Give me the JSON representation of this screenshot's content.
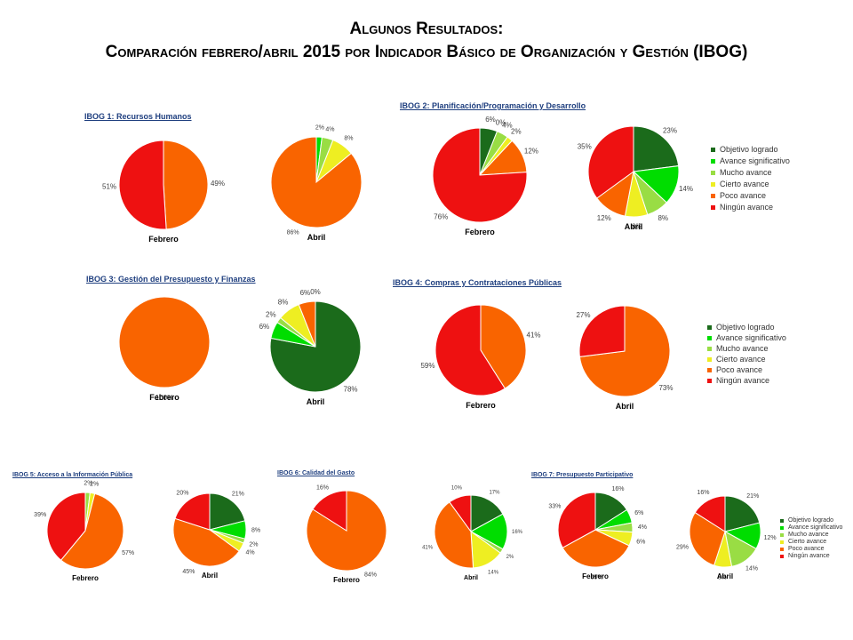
{
  "title_line1": "Algunos Resultados:",
  "title_line2": "Comparación febrero/abril 2015 por Indicador Básico de Organización y Gestión (IBOG)",
  "colors": {
    "Objetivo logrado": "#1B6B1B",
    "Avance significativo": "#00DD00",
    "Mucho avance": "#99DD44",
    "Cierto avance": "#EEEE22",
    "Poco avance": "#F96400",
    "Ningún avance": "#EE1111"
  },
  "legend": [
    "Objetivo logrado",
    "Avance significativo",
    "Mucho avance",
    "Cierto avance",
    "Poco avance",
    "Ningún avance"
  ],
  "chart_data": [
    {
      "type": "pie",
      "title": "IBOG 1: Recursos Humanos",
      "category": "Febrero",
      "slices": [
        {
          "label": "Poco avance",
          "value": 49
        },
        {
          "label": "Ningún avance",
          "value": 51
        }
      ]
    },
    {
      "type": "pie",
      "title": "IBOG 1: Recursos Humanos",
      "category": "Abril",
      "slices": [
        {
          "label": "Avance significativo",
          "value": 2
        },
        {
          "label": "Mucho avance",
          "value": 4
        },
        {
          "label": "Cierto avance",
          "value": 8
        },
        {
          "label": "Poco avance",
          "value": 86
        }
      ]
    },
    {
      "type": "pie",
      "title": "IBOG 2: Planificación/Programación y Desarrollo",
      "category": "Febrero",
      "slices": [
        {
          "label": "Objetivo logrado",
          "value": 6
        },
        {
          "label": "Avance significativo",
          "value": 0
        },
        {
          "label": "Mucho avance",
          "value": 4
        },
        {
          "label": "Cierto avance",
          "value": 2
        },
        {
          "label": "Poco avance",
          "value": 12
        },
        {
          "label": "Ningún avance",
          "value": 76
        }
      ]
    },
    {
      "type": "pie",
      "title": "IBOG 2: Planificación/Programación y Desarrollo",
      "category": "Abril",
      "slices": [
        {
          "label": "Objetivo logrado",
          "value": 23
        },
        {
          "label": "Avance significativo",
          "value": 14
        },
        {
          "label": "Mucho avance",
          "value": 8
        },
        {
          "label": "Cierto avance",
          "value": 8
        },
        {
          "label": "Poco avance",
          "value": 12
        },
        {
          "label": "Ningún avance",
          "value": 35
        }
      ]
    },
    {
      "type": "pie",
      "title": "IBOG 3: Gestión del Presupuesto y Finanzas",
      "category": "Febrero",
      "slices": [
        {
          "label": "Poco avance",
          "value": 100
        }
      ]
    },
    {
      "type": "pie",
      "title": "IBOG 3: Gestión del Presupuesto y Finanzas",
      "category": "Abril",
      "slices": [
        {
          "label": "Objetivo logrado",
          "value": 78
        },
        {
          "label": "Avance significativo",
          "value": 6
        },
        {
          "label": "Mucho avance",
          "value": 2
        },
        {
          "label": "Cierto avance",
          "value": 8
        },
        {
          "label": "Poco avance",
          "value": 6
        },
        {
          "label": "Ningún avance",
          "value": 0
        }
      ]
    },
    {
      "type": "pie",
      "title": "IBOG 4: Compras y Contrataciones Públicas",
      "category": "Febrero",
      "slices": [
        {
          "label": "Poco avance",
          "value": 41
        },
        {
          "label": "Ningún avance",
          "value": 59
        }
      ]
    },
    {
      "type": "pie",
      "title": "IBOG 4: Compras y Contrataciones Públicas",
      "category": "Abril",
      "slices": [
        {
          "label": "Poco avance",
          "value": 73
        },
        {
          "label": "Ningún avance",
          "value": 27
        }
      ]
    },
    {
      "type": "pie",
      "title": "IBOG 5: Acceso a la Información Pública",
      "category": "Febrero",
      "slices": [
        {
          "label": "Mucho avance",
          "value": 2
        },
        {
          "label": "Cierto avance",
          "value": 2
        },
        {
          "label": "Poco avance",
          "value": 57
        },
        {
          "label": "Ningún avance",
          "value": 39
        }
      ]
    },
    {
      "type": "pie",
      "title": "IBOG 5: Acceso a la Información Pública",
      "category": "Abril",
      "slices": [
        {
          "label": "Objetivo logrado",
          "value": 21
        },
        {
          "label": "Avance significativo",
          "value": 8
        },
        {
          "label": "Mucho avance",
          "value": 2
        },
        {
          "label": "Cierto avance",
          "value": 4
        },
        {
          "label": "Poco avance",
          "value": 45
        },
        {
          "label": "Ningún avance",
          "value": 20
        }
      ]
    },
    {
      "type": "pie",
      "title": "IBOG 6: Calidad del Gasto",
      "category": "Febrero",
      "slices": [
        {
          "label": "Poco avance",
          "value": 84
        },
        {
          "label": "Ningún avance",
          "value": 16
        }
      ]
    },
    {
      "type": "pie",
      "title": "IBOG 6: Calidad del Gasto",
      "category": "Abril",
      "slices": [
        {
          "label": "Objetivo logrado",
          "value": 17
        },
        {
          "label": "Avance significativo",
          "value": 16
        },
        {
          "label": "Mucho avance",
          "value": 2
        },
        {
          "label": "Cierto avance",
          "value": 14
        },
        {
          "label": "Poco avance",
          "value": 41
        },
        {
          "label": "Ningún avance",
          "value": 10
        }
      ]
    },
    {
      "type": "pie",
      "title": "IBOG 7: Presupuesto Participativo",
      "category": "Febrero",
      "slices": [
        {
          "label": "Objetivo logrado",
          "value": 16
        },
        {
          "label": "Avance significativo",
          "value": 6
        },
        {
          "label": "Mucho avance",
          "value": 4
        },
        {
          "label": "Cierto avance",
          "value": 6
        },
        {
          "label": "Poco avance",
          "value": 35
        },
        {
          "label": "Ningún avance",
          "value": 33
        }
      ]
    },
    {
      "type": "pie",
      "title": "IBOG 7: Presupuesto Participativo",
      "category": "Abril",
      "slices": [
        {
          "label": "Objetivo logrado",
          "value": 21
        },
        {
          "label": "Avance significativo",
          "value": 12
        },
        {
          "label": "Mucho avance",
          "value": 14
        },
        {
          "label": "Cierto avance",
          "value": 8
        },
        {
          "label": "Poco avance",
          "value": 29
        },
        {
          "label": "Ningún avance",
          "value": 16
        }
      ]
    }
  ]
}
